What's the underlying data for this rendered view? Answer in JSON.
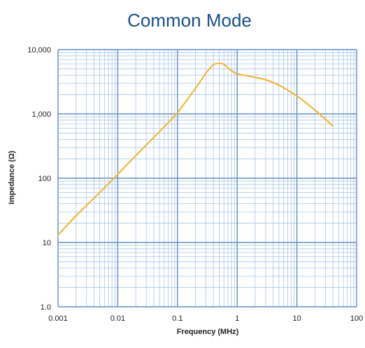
{
  "colors": {
    "title": "#1a4f8a",
    "grid_major": "#5f8fc8",
    "grid_minor": "#a9c6e8",
    "curve": "#f0b840",
    "text": "#222222"
  },
  "chart_data": {
    "type": "line",
    "title": "Common Mode",
    "xlabel": "Frequency (MHz)",
    "ylabel": "Impedance (Ω)",
    "xscale": "log",
    "yscale": "log",
    "xlim": [
      0.001,
      100
    ],
    "ylim": [
      1,
      10000
    ],
    "grid": true,
    "x_tick_labels": [
      "0.001",
      "0.01",
      "0.1",
      "1",
      "10",
      "100"
    ],
    "y_tick_labels": [
      "1.0",
      "10",
      "100",
      "1,000",
      "10,000"
    ],
    "series": [
      {
        "x": [
          0.001,
          0.002,
          0.005,
          0.01,
          0.02,
          0.05,
          0.1,
          0.2,
          0.3,
          0.4,
          0.5,
          0.6,
          0.7,
          0.8,
          1,
          1.5,
          2,
          3,
          5,
          10,
          20,
          40
        ],
        "y": [
          13,
          26,
          60,
          115,
          225,
          530,
          1050,
          2500,
          4300,
          5800,
          6100,
          5900,
          5200,
          4700,
          4200,
          3900,
          3700,
          3400,
          2800,
          1900,
          1150,
          650
        ]
      }
    ]
  }
}
